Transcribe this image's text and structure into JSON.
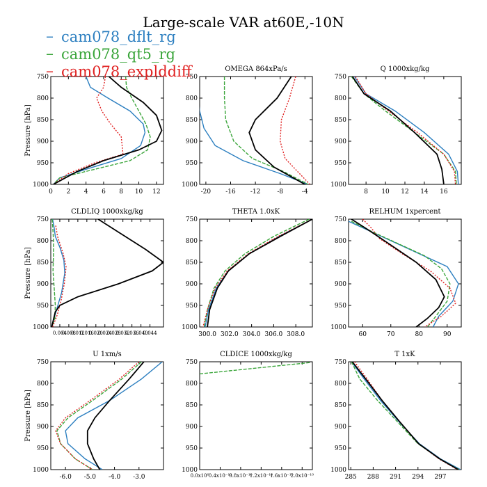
{
  "figure": {
    "title": "Large-scale VAR at60E,-10N"
  },
  "legend": [
    {
      "name": "cam078_dflt_rg",
      "color": "#2c7fc0"
    },
    {
      "name": "cam078_qt5_rg",
      "color": "#3aa53a"
    },
    {
      "name": "cam078_explddiff",
      "color": "#e02020"
    }
  ],
  "colors": {
    "black_series": "#000000"
  },
  "chart_data": [
    {
      "type": "line",
      "title": "",
      "ylabel": "Pressure [hPa]",
      "xlim": [
        0,
        12.8
      ],
      "ylim": [
        1000,
        750
      ],
      "xticks": [
        0,
        2,
        4,
        6,
        8,
        10,
        12
      ],
      "xtick_labels": [
        "0",
        "2",
        "4",
        "6",
        "8",
        "10",
        "12"
      ],
      "yticks": [
        750,
        800,
        850,
        900,
        950,
        1000
      ],
      "series": [
        {
          "color": "blue",
          "style": "solid",
          "x": [
            4,
            4.5,
            6.5,
            9,
            10.5,
            10.7,
            10.2,
            8,
            4,
            1,
            0.3
          ],
          "y": [
            750,
            775,
            800,
            830,
            860,
            880,
            910,
            940,
            965,
            985,
            1000
          ]
        },
        {
          "color": "green",
          "style": "dashed",
          "x": [
            8.5,
            8.6,
            9.2,
            10,
            10.8,
            11.3,
            11,
            9,
            5,
            1,
            0.3
          ],
          "y": [
            750,
            775,
            800,
            830,
            860,
            890,
            920,
            945,
            965,
            985,
            1000
          ]
        },
        {
          "color": "red",
          "style": "dotted",
          "x": [
            6.2,
            6,
            5.2,
            5.8,
            6.8,
            8,
            8.2,
            5,
            2,
            0.3
          ],
          "y": [
            750,
            775,
            800,
            830,
            860,
            890,
            930,
            950,
            975,
            1000
          ]
        },
        {
          "color": "black",
          "style": "solid",
          "x": [
            6.6,
            8,
            10.5,
            12,
            12.6,
            12,
            10,
            6,
            3,
            0.3
          ],
          "y": [
            750,
            775,
            810,
            840,
            875,
            900,
            920,
            945,
            970,
            1000
          ]
        }
      ]
    },
    {
      "type": "line",
      "title": "OMEGA  864xPa/s",
      "ylabel": "",
      "xlim": [
        -21,
        -2.8
      ],
      "ylim": [
        1000,
        750
      ],
      "xticks": [
        -20,
        -16,
        -12,
        -8,
        -4
      ],
      "xtick_labels": [
        "-20",
        "-16",
        "-12",
        "-8",
        "-4"
      ],
      "yticks": [
        750,
        800,
        850,
        900,
        950,
        1000
      ],
      "series": [
        {
          "color": "blue",
          "style": "solid",
          "x": [
            -21.2,
            -21,
            -20.3,
            -18.5,
            -14,
            -8,
            -3.5
          ],
          "y": [
            800,
            830,
            870,
            910,
            945,
            975,
            1000
          ]
        },
        {
          "color": "green",
          "style": "dashed",
          "x": [
            -17,
            -17,
            -16.8,
            -15.5,
            -12.5,
            -7.5,
            -3.5
          ],
          "y": [
            750,
            800,
            850,
            900,
            940,
            970,
            1000
          ]
        },
        {
          "color": "red",
          "style": "dotted",
          "x": [
            -5.5,
            -6.5,
            -7.8,
            -8,
            -7.2,
            -5.2,
            -3.2
          ],
          "y": [
            750,
            800,
            850,
            900,
            940,
            970,
            1000
          ]
        },
        {
          "color": "black",
          "style": "solid",
          "x": [
            -6.2,
            -8.5,
            -12,
            -13,
            -12,
            -9,
            -4
          ],
          "y": [
            750,
            800,
            850,
            880,
            920,
            960,
            1000
          ]
        }
      ]
    },
    {
      "type": "line",
      "title": "Q  1000xkg/kg",
      "ylabel": "",
      "xlim": [
        6.2,
        17.8
      ],
      "ylim": [
        1000,
        750
      ],
      "xticks": [
        8,
        10,
        12,
        14,
        16
      ],
      "xtick_labels": [
        "8",
        "10",
        "12",
        "14",
        "16"
      ],
      "yticks": [
        750,
        800,
        850,
        900,
        950,
        1000
      ],
      "series": [
        {
          "color": "blue",
          "style": "solid",
          "x": [
            6.8,
            8,
            11,
            14,
            16.5,
            17.4,
            17.5
          ],
          "y": [
            750,
            790,
            830,
            880,
            930,
            970,
            1000
          ]
        },
        {
          "color": "green",
          "style": "dashed",
          "x": [
            6.5,
            7.8,
            10,
            13,
            16,
            17.2,
            17.3
          ],
          "y": [
            750,
            790,
            830,
            880,
            930,
            970,
            1000
          ]
        },
        {
          "color": "red",
          "style": "dotted",
          "x": [
            6.9,
            8,
            10.3,
            13.3,
            16,
            17.1,
            17.2
          ],
          "y": [
            750,
            790,
            830,
            880,
            930,
            970,
            1000
          ]
        },
        {
          "color": "black",
          "style": "solid",
          "x": [
            6.6,
            7.8,
            10.5,
            13,
            15.3,
            15.8,
            16
          ],
          "y": [
            750,
            790,
            830,
            880,
            930,
            965,
            1000
          ]
        }
      ]
    },
    {
      "type": "line",
      "title": "CLDLIQ  1000xkg/kg",
      "ylabel": "Pressure [hPa]",
      "xlim": [
        0,
        0.05
      ],
      "ylim": [
        1000,
        750
      ],
      "xticks": [
        0.004,
        0.008,
        0.012,
        0.016,
        0.02,
        0.024,
        0.028,
        0.032,
        0.036,
        0.04,
        0.044
      ],
      "xtick_labels": [
        "0.004",
        "0.008",
        "0.012",
        "0.016",
        "0.020",
        "0.024",
        "0.028",
        "0.032",
        "0.036",
        "0.040",
        "0.044"
      ],
      "yticks": [
        750,
        800,
        850,
        900,
        950,
        1000
      ],
      "series": [
        {
          "color": "blue",
          "style": "solid",
          "x": [
            0.0008,
            0.0015,
            0.002,
            0.004,
            0.0058,
            0.0062,
            0.0048,
            0.002,
            0.0004
          ],
          "y": [
            750,
            770,
            790,
            815,
            845,
            875,
            920,
            970,
            1000
          ]
        },
        {
          "color": "green",
          "style": "dashed",
          "x": [
            0.0006,
            0.0009,
            0.0012,
            0.0012,
            0.001,
            0.0015,
            0.002,
            0.0018,
            0.0005
          ],
          "y": [
            750,
            770,
            800,
            830,
            870,
            910,
            950,
            980,
            1000
          ]
        },
        {
          "color": "red",
          "style": "dotted",
          "x": [
            0.0022,
            0.003,
            0.0055,
            0.0068,
            0.006,
            0.0045,
            0.003,
            0.0008
          ],
          "y": [
            765,
            790,
            830,
            860,
            900,
            940,
            970,
            1000
          ]
        },
        {
          "color": "black",
          "style": "solid",
          "x": [
            0.021,
            0.03,
            0.042,
            0.05,
            0.045,
            0.03,
            0.012,
            0.004,
            0.002,
            0.0004
          ],
          "y": [
            750,
            780,
            820,
            850,
            870,
            900,
            930,
            950,
            965,
            1000
          ]
        }
      ]
    },
    {
      "type": "line",
      "title": "THETA  1.0xK",
      "ylabel": "",
      "xlim": [
        299.3,
        309.5
      ],
      "ylim": [
        1000,
        750
      ],
      "xticks": [
        300,
        302,
        304,
        306,
        308
      ],
      "xtick_labels": [
        "300.0",
        "302.0",
        "304.0",
        "306.0",
        "308.0"
      ],
      "yticks": [
        750,
        800,
        850,
        900,
        950,
        1000
      ],
      "series": [
        {
          "color": "blue",
          "style": "solid",
          "x": [
            309.5,
            306.5,
            303.8,
            301.9,
            300.8,
            300.1,
            299.8
          ],
          "y": [
            750,
            790,
            830,
            870,
            910,
            960,
            1000
          ]
        },
        {
          "color": "green",
          "style": "dashed",
          "x": [
            309.2,
            306,
            303.4,
            301.6,
            300.6,
            300,
            299.7
          ],
          "y": [
            750,
            790,
            830,
            870,
            910,
            960,
            1000
          ]
        },
        {
          "color": "red",
          "style": "dotted",
          "x": [
            309.5,
            306.4,
            303.7,
            301.8,
            300.7,
            300,
            299.6
          ],
          "y": [
            750,
            790,
            830,
            870,
            910,
            960,
            1000
          ]
        },
        {
          "color": "black",
          "style": "solid",
          "x": [
            309.5,
            306.6,
            303.8,
            301.9,
            300.9,
            300.2,
            300
          ],
          "y": [
            750,
            790,
            830,
            870,
            910,
            960,
            1000
          ]
        }
      ]
    },
    {
      "type": "line",
      "title": "RELHUM  1xpercent",
      "ylabel": "",
      "xlim": [
        55,
        95
      ],
      "ylim": [
        1000,
        750
      ],
      "xticks": [
        60,
        70,
        80,
        90
      ],
      "xtick_labels": [
        "60",
        "70",
        "80",
        "90"
      ],
      "yticks": [
        750,
        800,
        850,
        900,
        950,
        1000
      ],
      "series": [
        {
          "color": "blue",
          "style": "solid",
          "x": [
            55,
            60,
            70,
            80,
            90,
            94,
            92,
            87,
            85
          ],
          "y": [
            755,
            770,
            800,
            830,
            860,
            900,
            940,
            975,
            1000
          ]
        },
        {
          "color": "green",
          "style": "dashed",
          "x": [
            56,
            62,
            72,
            82,
            88,
            91,
            90,
            86,
            83
          ],
          "y": [
            755,
            775,
            805,
            835,
            865,
            900,
            940,
            975,
            1000
          ]
        },
        {
          "color": "red",
          "style": "dotted",
          "x": [
            60,
            63,
            66,
            74,
            84,
            91,
            93,
            88,
            82
          ],
          "y": [
            750,
            770,
            795,
            830,
            870,
            910,
            945,
            975,
            1000
          ]
        },
        {
          "color": "black",
          "style": "solid",
          "x": [
            56,
            62,
            70,
            79,
            86,
            89,
            87,
            83,
            79
          ],
          "y": [
            750,
            775,
            810,
            850,
            890,
            930,
            955,
            980,
            1000
          ]
        }
      ]
    },
    {
      "type": "line",
      "title": "U  1xm/s",
      "ylabel": "Pressure [hPa]",
      "xlim": [
        -6.6,
        -2.0
      ],
      "ylim": [
        1000,
        750
      ],
      "xticks": [
        -6,
        -5,
        -4,
        -3
      ],
      "xtick_labels": [
        "-6.0",
        "-5.0",
        "-4.0",
        "-3.0"
      ],
      "yticks": [
        750,
        800,
        850,
        900,
        950,
        1000
      ],
      "series": [
        {
          "color": "blue",
          "style": "solid",
          "x": [
            -2.05,
            -2.9,
            -4.2,
            -5.5,
            -6.0,
            -5.9,
            -5.2,
            -4.5
          ],
          "y": [
            750,
            790,
            840,
            880,
            910,
            940,
            975,
            1000
          ]
        },
        {
          "color": "green",
          "style": "dashed",
          "x": [
            -2.9,
            -3.7,
            -4.9,
            -5.9,
            -6.35,
            -6.2,
            -5.6,
            -4.9
          ],
          "y": [
            750,
            790,
            840,
            880,
            910,
            940,
            975,
            1000
          ]
        },
        {
          "color": "red",
          "style": "dotted",
          "x": [
            -3.0,
            -3.8,
            -5.0,
            -6.0,
            -6.4,
            -6.2,
            -5.6,
            -4.9
          ],
          "y": [
            750,
            790,
            840,
            880,
            910,
            940,
            975,
            1000
          ]
        },
        {
          "color": "black",
          "style": "solid",
          "x": [
            -2.8,
            -3.4,
            -4.2,
            -4.8,
            -5.1,
            -5.1,
            -4.85,
            -4.6
          ],
          "y": [
            750,
            790,
            840,
            880,
            910,
            940,
            975,
            1000
          ]
        }
      ]
    },
    {
      "type": "line",
      "title": "CLDICE  1000xkg/kg",
      "ylabel": "",
      "xlim": [
        0,
        2.2e-10
      ],
      "ylim": [
        1000,
        750
      ],
      "xticks": [
        0,
        4e-11,
        8e-11,
        1.2e-10,
        1.6e-10,
        2e-10
      ],
      "xtick_labels": [
        "0.0x10⁰",
        "0.4x10⁻¹⁰",
        "0.8x10⁻¹⁰",
        "1.2x10⁻¹⁰",
        "1.6x10⁻¹⁰",
        "2.0x10⁻¹⁰"
      ],
      "yticks": [
        750,
        800,
        850,
        900,
        950,
        1000
      ],
      "series": [
        {
          "color": "green",
          "style": "dashed",
          "x": [
            0,
            2.15e-10
          ],
          "y": [
            778,
            752
          ]
        }
      ]
    },
    {
      "type": "line",
      "title": "T  1xK",
      "ylabel": "",
      "xlim": [
        284.7,
        299.8
      ],
      "ylim": [
        1000,
        750
      ],
      "xticks": [
        285,
        288,
        291,
        294,
        297
      ],
      "xtick_labels": [
        "285",
        "288",
        "291",
        "294",
        "297"
      ],
      "yticks": [
        750,
        800,
        850,
        900,
        950,
        1000
      ],
      "series": [
        {
          "color": "blue",
          "style": "solid",
          "x": [
            285.1,
            286.8,
            289,
            291.5,
            294.2,
            297,
            299.7
          ],
          "y": [
            750,
            790,
            840,
            890,
            940,
            975,
            1000
          ]
        },
        {
          "color": "green",
          "style": "dashed",
          "x": [
            285.1,
            286.2,
            288.6,
            291.3,
            294,
            296.9,
            299.5
          ],
          "y": [
            750,
            790,
            840,
            890,
            940,
            975,
            1000
          ]
        },
        {
          "color": "red",
          "style": "dotted",
          "x": [
            285.5,
            287.2,
            289.2,
            291.6,
            294.1,
            296.8,
            299.3
          ],
          "y": [
            750,
            790,
            840,
            890,
            940,
            975,
            1000
          ]
        },
        {
          "color": "black",
          "style": "solid",
          "x": [
            285.2,
            287,
            289.2,
            291.6,
            294.1,
            296.9,
            299.4
          ],
          "y": [
            750,
            790,
            840,
            890,
            940,
            975,
            1000
          ]
        }
      ]
    }
  ]
}
